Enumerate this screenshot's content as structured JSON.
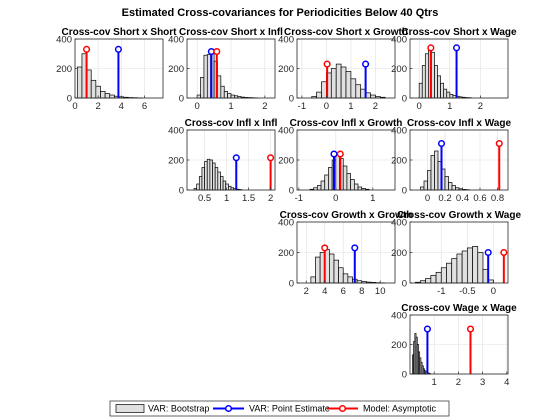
{
  "figure_title": "Estimated Cross-covariances for Periodicities Below 40 Qtrs",
  "colors": {
    "bootstrap_fill": "#e0e0e0",
    "point_estimate": "#0000ff",
    "asymptotic": "#ff0000",
    "axis": "#262626",
    "grid": "#dfdfdf"
  },
  "legend": {
    "bootstrap": "VAR: Bootstrap",
    "point_estimate": "VAR: Point Estimate",
    "asymptotic": "Model: Asymptotic"
  },
  "chart_data": [
    {
      "id": "short-short",
      "type": "bar",
      "title": "Cross-cov Short x Short",
      "xlim": [
        0,
        7.6
      ],
      "ylim": [
        0,
        400
      ],
      "xticks": [
        0,
        2,
        4,
        6
      ],
      "xticklabels": [
        "0",
        "2",
        "4",
        "6"
      ],
      "yticks": [
        0,
        200,
        400
      ],
      "yticklabels": [
        "0",
        "200",
        "400"
      ],
      "bin_width": 0.4,
      "bin_starts": [
        0.2,
        0.6,
        1.0,
        1.4,
        1.8,
        2.2,
        2.6,
        3.0,
        3.4,
        3.8,
        4.2,
        4.6,
        5.0,
        5.4
      ],
      "counts": [
        210,
        300,
        190,
        120,
        80,
        45,
        30,
        20,
        12,
        8,
        5,
        3,
        2,
        1
      ],
      "point_estimate": {
        "x": 3.75,
        "y": 330
      },
      "asymptotic": {
        "x": 1.0,
        "y": 330
      }
    },
    {
      "id": "short-infl",
      "type": "bar",
      "title": "Cross-cov Short x Infl",
      "xlim": [
        -0.3,
        2.3
      ],
      "ylim": [
        0,
        400
      ],
      "xticks": [
        0,
        1,
        2
      ],
      "xticklabels": [
        "0",
        "1",
        "2"
      ],
      "yticks": [
        0,
        200,
        400
      ],
      "yticklabels": [
        "0",
        "200",
        "400"
      ],
      "bin_width": 0.1,
      "bin_starts": [
        0.0,
        0.1,
        0.2,
        0.3,
        0.4,
        0.5,
        0.6,
        0.7,
        0.8,
        0.9,
        1.0,
        1.1,
        1.2,
        1.3,
        1.4,
        1.5,
        1.6,
        1.7
      ],
      "counts": [
        20,
        140,
        290,
        295,
        300,
        250,
        150,
        80,
        45,
        30,
        20,
        15,
        10,
        6,
        4,
        3,
        2,
        1
      ],
      "point_estimate": {
        "x": 0.42,
        "y": 315
      },
      "asymptotic": {
        "x": 0.58,
        "y": 315
      }
    },
    {
      "id": "short-growth",
      "type": "bar",
      "title": "Cross-cov Short x Growth",
      "xlim": [
        -1.2,
        2.8
      ],
      "ylim": [
        0,
        400
      ],
      "xticks": [
        -1,
        0,
        1,
        2
      ],
      "xticklabels": [
        "-1",
        "0",
        "1",
        "2"
      ],
      "yticks": [
        0,
        200,
        400
      ],
      "yticklabels": [
        "0",
        "200",
        "400"
      ],
      "bin_width": 0.2,
      "bin_starts": [
        -0.6,
        -0.4,
        -0.2,
        0.0,
        0.2,
        0.4,
        0.6,
        0.8,
        1.0,
        1.2,
        1.4,
        1.6,
        1.8,
        2.0,
        2.2
      ],
      "counts": [
        10,
        40,
        110,
        170,
        200,
        230,
        210,
        180,
        130,
        90,
        60,
        35,
        20,
        10,
        5
      ],
      "point_estimate": {
        "x": 1.6,
        "y": 230
      },
      "asymptotic": {
        "x": 0.03,
        "y": 230
      }
    },
    {
      "id": "short-wage",
      "type": "bar",
      "title": "Cross-cov Short x Wage",
      "xlim": [
        -0.3,
        2.9
      ],
      "ylim": [
        0,
        400
      ],
      "xticks": [
        0,
        1,
        2
      ],
      "xticklabels": [
        "0",
        "1",
        "2"
      ],
      "yticks": [
        0,
        200,
        400
      ],
      "yticklabels": [
        "0",
        "200",
        "400"
      ],
      "bin_width": 0.1,
      "bin_starts": [
        0.0,
        0.1,
        0.2,
        0.3,
        0.4,
        0.5,
        0.6,
        0.7,
        0.8,
        0.9,
        1.0,
        1.1,
        1.2,
        1.3,
        1.4,
        1.5,
        1.6
      ],
      "counts": [
        100,
        220,
        300,
        340,
        310,
        220,
        150,
        100,
        60,
        40,
        25,
        18,
        12,
        8,
        5,
        3,
        2
      ],
      "point_estimate": {
        "x": 1.22,
        "y": 340
      },
      "asymptotic": {
        "x": 0.38,
        "y": 340
      }
    },
    {
      "id": "infl-infl",
      "type": "bar",
      "title": "Cross-cov Infl x Infl",
      "xlim": [
        0.1,
        2.1
      ],
      "ylim": [
        0,
        400
      ],
      "xticks": [
        0.5,
        1,
        1.5,
        2
      ],
      "xticklabels": [
        "0.5",
        "1",
        "1.5",
        "2"
      ],
      "yticks": [
        0,
        200,
        400
      ],
      "yticklabels": [
        "0",
        "200",
        "400"
      ],
      "bin_width": 0.06,
      "bin_starts": [
        0.26,
        0.32,
        0.38,
        0.44,
        0.5,
        0.56,
        0.62,
        0.68,
        0.74,
        0.8,
        0.86,
        0.92,
        0.98,
        1.04,
        1.1,
        1.16,
        1.22,
        1.28
      ],
      "counts": [
        10,
        40,
        90,
        150,
        190,
        205,
        200,
        180,
        150,
        120,
        90,
        60,
        40,
        25,
        15,
        10,
        5,
        3
      ],
      "point_estimate": {
        "x": 1.22,
        "y": 215
      },
      "asymptotic": {
        "x": 2.0,
        "y": 215
      }
    },
    {
      "id": "infl-growth",
      "type": "bar",
      "title": "Cross-cov Infl x Growth",
      "xlim": [
        -1.05,
        1.6
      ],
      "ylim": [
        0,
        400
      ],
      "xticks": [
        -1,
        0,
        1
      ],
      "xticklabels": [
        "-1",
        "0",
        "1"
      ],
      "yticks": [
        0,
        200,
        400
      ],
      "yticklabels": [
        "0",
        "200",
        "400"
      ],
      "bin_width": 0.1,
      "bin_starts": [
        -0.7,
        -0.6,
        -0.5,
        -0.4,
        -0.3,
        -0.2,
        -0.1,
        0.0,
        0.1,
        0.2,
        0.3,
        0.4,
        0.5,
        0.6,
        0.7,
        0.8
      ],
      "counts": [
        5,
        15,
        30,
        60,
        100,
        150,
        200,
        240,
        210,
        160,
        110,
        70,
        40,
        20,
        10,
        5
      ],
      "point_estimate": {
        "x": -0.05,
        "y": 240
      },
      "asymptotic": {
        "x": 0.12,
        "y": 240
      }
    },
    {
      "id": "infl-wage",
      "type": "bar",
      "title": "Cross-cov Infl x Wage",
      "xlim": [
        -0.2,
        0.92
      ],
      "ylim": [
        0,
        400
      ],
      "xticks": [
        0,
        0.2,
        0.4,
        0.6,
        0.8
      ],
      "xticklabels": [
        "0",
        "0.2",
        "0.4",
        "0.6",
        "0.8"
      ],
      "yticks": [
        0,
        200,
        400
      ],
      "yticklabels": [
        "0",
        "200",
        "400"
      ],
      "bin_width": 0.04,
      "bin_starts": [
        -0.08,
        -0.04,
        0.0,
        0.04,
        0.08,
        0.12,
        0.16,
        0.2,
        0.24,
        0.28,
        0.32,
        0.36,
        0.4,
        0.44
      ],
      "counts": [
        20,
        60,
        130,
        230,
        260,
        190,
        140,
        90,
        50,
        30,
        15,
        8,
        4,
        2
      ],
      "point_estimate": {
        "x": 0.16,
        "y": 310
      },
      "asymptotic": {
        "x": 0.82,
        "y": 310
      }
    },
    {
      "id": "growth-growth",
      "type": "bar",
      "title": "Cross-cov Growth x Growth",
      "xlim": [
        1,
        11.6
      ],
      "ylim": [
        0,
        400
      ],
      "xticks": [
        2,
        4,
        6,
        8,
        10
      ],
      "xticklabels": [
        "2",
        "4",
        "6",
        "8",
        "10"
      ],
      "yticks": [
        0,
        200,
        400
      ],
      "yticklabels": [
        "0",
        "200",
        "400"
      ],
      "bin_width": 0.5,
      "bin_starts": [
        2.5,
        3.0,
        3.5,
        4.0,
        4.5,
        5.0,
        5.5,
        6.0,
        6.5,
        7.0,
        7.5,
        8.0,
        8.5,
        9.0,
        9.5,
        10.0
      ],
      "counts": [
        40,
        170,
        200,
        220,
        190,
        150,
        100,
        60,
        40,
        25,
        15,
        10,
        6,
        4,
        2,
        1
      ],
      "point_estimate": {
        "x": 7.25,
        "y": 230
      },
      "asymptotic": {
        "x": 4.0,
        "y": 230
      }
    },
    {
      "id": "growth-wage",
      "type": "bar",
      "title": "Cross-cov Growth x Wage",
      "xlim": [
        -1.6,
        0.28
      ],
      "ylim": [
        0,
        400
      ],
      "xticks": [
        -1,
        -0.5,
        0
      ],
      "xticklabels": [
        "-1",
        "-0.5",
        "0"
      ],
      "yticks": [
        0,
        200,
        400
      ],
      "yticklabels": [
        "0",
        "200",
        "400"
      ],
      "bin_width": 0.1,
      "bin_starts": [
        -1.5,
        -1.4,
        -1.3,
        -1.2,
        -1.1,
        -1.0,
        -0.9,
        -0.8,
        -0.7,
        -0.6,
        -0.5,
        -0.4,
        -0.3,
        -0.2,
        -0.1
      ],
      "counts": [
        5,
        15,
        30,
        50,
        70,
        100,
        130,
        160,
        190,
        210,
        230,
        240,
        200,
        90,
        20
      ],
      "point_estimate": {
        "x": -0.1,
        "y": 200
      },
      "asymptotic": {
        "x": 0.2,
        "y": 200
      }
    },
    {
      "id": "wage-wage",
      "type": "bar",
      "title": "Cross-cov Wage x Wage",
      "xlim": [
        0,
        4.05
      ],
      "ylim": [
        0,
        400
      ],
      "xticks": [
        1,
        2,
        3,
        4
      ],
      "xticklabels": [
        "1",
        "2",
        "3",
        "4"
      ],
      "yticks": [
        0,
        200,
        400
      ],
      "yticklabels": [
        "0",
        "200",
        "400"
      ],
      "bin_width": 0.05,
      "bin_starts": [
        0.1,
        0.15,
        0.2,
        0.25,
        0.3,
        0.35,
        0.4,
        0.45,
        0.5,
        0.55,
        0.6,
        0.65,
        0.7,
        0.75,
        0.8
      ],
      "counts": [
        130,
        220,
        275,
        250,
        200,
        150,
        110,
        80,
        55,
        35,
        22,
        15,
        10,
        6,
        3
      ],
      "point_estimate": {
        "x": 0.72,
        "y": 305
      },
      "asymptotic": {
        "x": 2.5,
        "y": 305
      }
    }
  ]
}
